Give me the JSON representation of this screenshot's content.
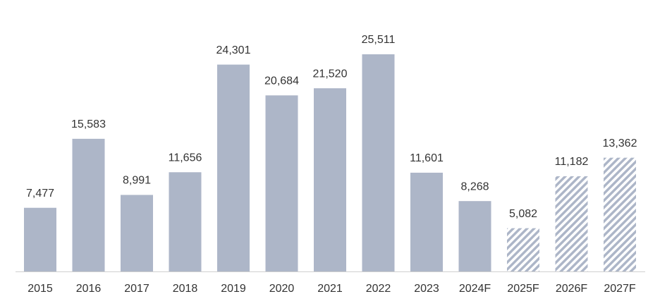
{
  "chart_data": {
    "type": "bar",
    "categories": [
      "2015",
      "2016",
      "2017",
      "2018",
      "2019",
      "2020",
      "2021",
      "2022",
      "2023",
      "2024F",
      "2025F",
      "2026F",
      "2027F"
    ],
    "values": [
      7477,
      15583,
      8991,
      11656,
      24301,
      20684,
      21520,
      25511,
      11601,
      8268,
      5082,
      11182,
      13362
    ],
    "value_labels": [
      "7,477",
      "15,583",
      "8,991",
      "11,656",
      "24,301",
      "20,684",
      "21,520",
      "25,511",
      "11,601",
      "8,268",
      "5,082",
      "11,182",
      "13,362"
    ],
    "hatched": [
      false,
      false,
      false,
      false,
      false,
      false,
      false,
      false,
      false,
      false,
      true,
      true,
      true
    ],
    "color": "#adb6c8"
  }
}
